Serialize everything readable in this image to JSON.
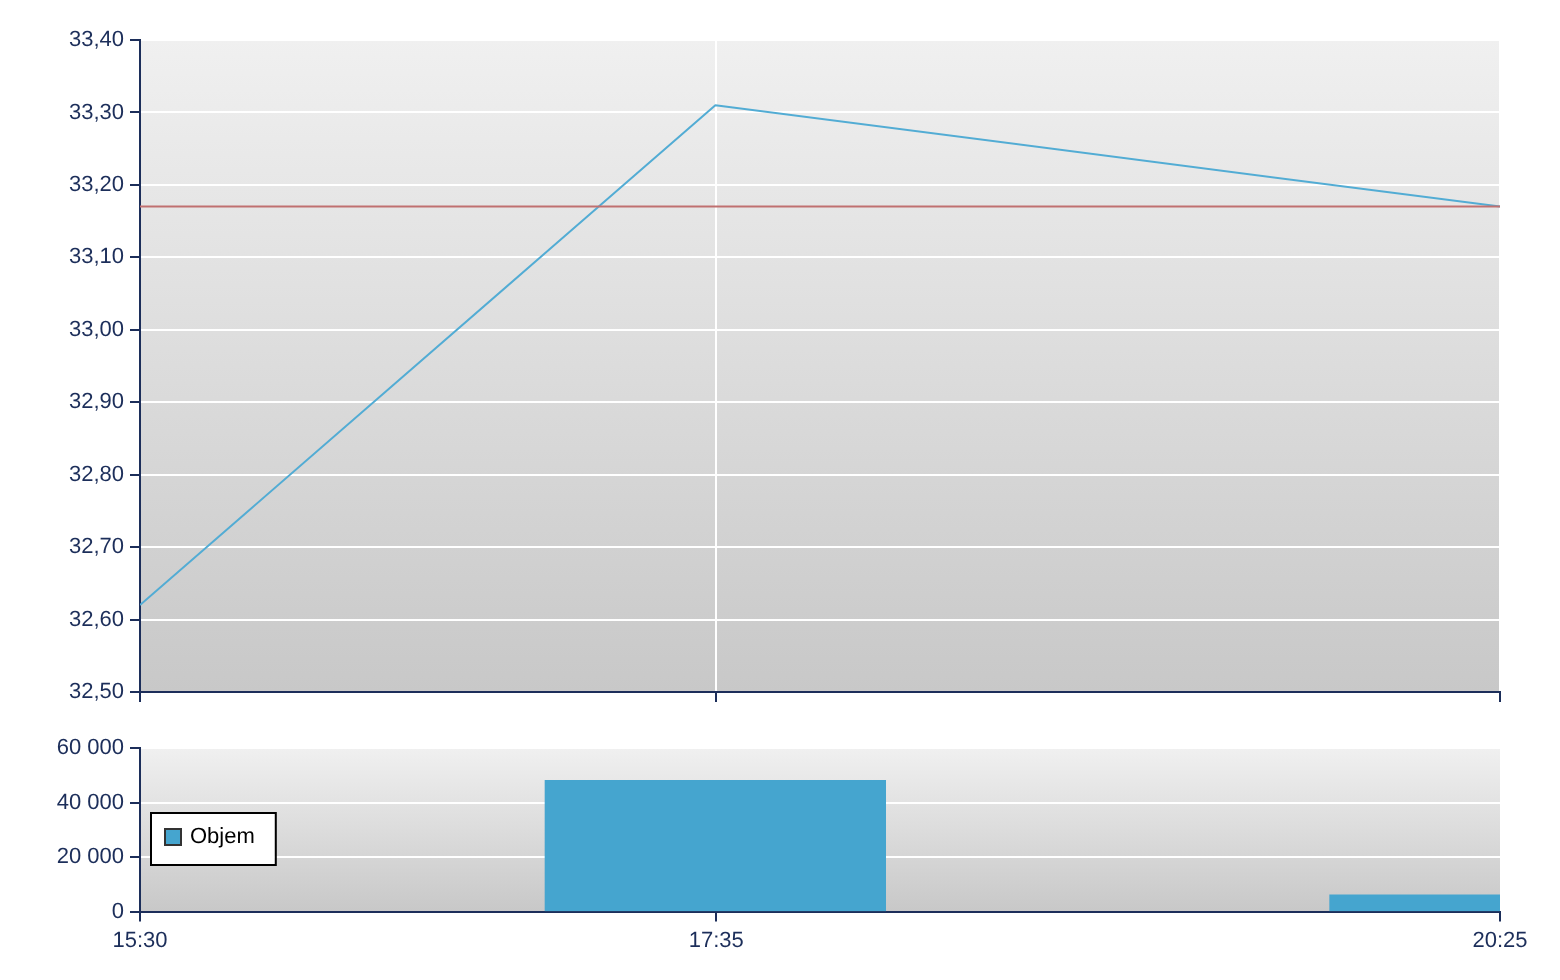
{
  "chart_data": [
    {
      "type": "line",
      "x": [
        15.5,
        17.58,
        20.4167
      ],
      "series": [
        {
          "color": "#52acd4",
          "values": [
            32.62,
            33.31,
            33.17
          ]
        }
      ],
      "xlim": [
        15.5,
        20.4167
      ],
      "xticks": [
        {
          "value": 15.5,
          "label": null
        },
        {
          "value": 17.5833,
          "label": null
        },
        {
          "value": 20.4167,
          "label": null
        }
      ],
      "ylim": [
        32.5,
        33.4
      ],
      "yticks": [
        {
          "value": 32.5,
          "label": "32,50"
        },
        {
          "value": 32.6,
          "label": "32,60"
        },
        {
          "value": 32.7,
          "label": "32,70"
        },
        {
          "value": 32.8,
          "label": "32,80"
        },
        {
          "value": 32.9,
          "label": "32,90"
        },
        {
          "value": 33.0,
          "label": "33,00"
        },
        {
          "value": 33.1,
          "label": "33,10"
        },
        {
          "value": 33.2,
          "label": "33,20"
        },
        {
          "value": 33.3,
          "label": "33,30"
        },
        {
          "value": 33.4,
          "label": "33,40"
        }
      ],
      "ref_lines": [
        {
          "axis": "y",
          "value": 33.17,
          "color": "#c07070"
        }
      ],
      "grid": true,
      "tick_labels": "y",
      "marker": "none"
    },
    {
      "type": "bar",
      "x": [
        17.58,
        20.4167
      ],
      "series": [
        {
          "name": "Objem",
          "color": "#45a5cf",
          "values": [
            48000,
            6000
          ]
        }
      ],
      "xlim": [
        15.5,
        20.4167
      ],
      "xticks": [
        {
          "value": 15.5,
          "label": "15:30"
        },
        {
          "value": 17.5833,
          "label": "17:35"
        },
        {
          "value": 20.4167,
          "label": "20:25"
        }
      ],
      "ylim": [
        0,
        60000
      ],
      "yticks": [
        {
          "value": 0,
          "label": "0"
        },
        {
          "value": 20000,
          "label": "20 000"
        },
        {
          "value": 40000,
          "label": "40 000"
        },
        {
          "value": 60000,
          "label": "60 000"
        }
      ],
      "grid": "y",
      "legend": "left"
    }
  ]
}
